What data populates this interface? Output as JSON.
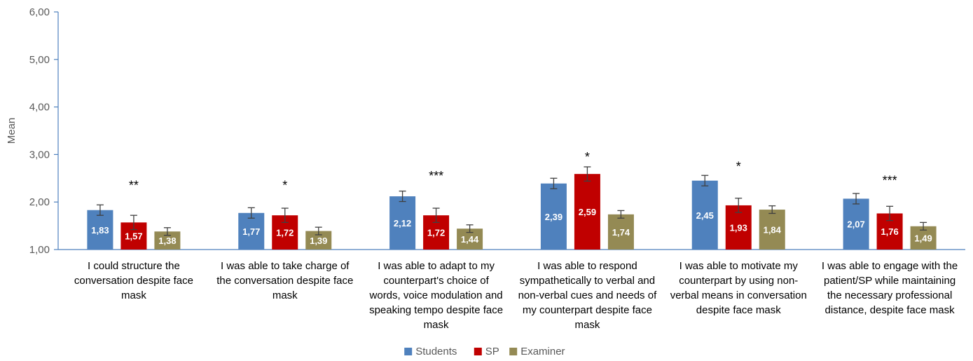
{
  "chart_data": {
    "type": "bar",
    "ylabel": "Mean",
    "ylim": [
      1,
      6
    ],
    "y_ticks": [
      "1,00",
      "2,00",
      "3,00",
      "4,00",
      "5,00",
      "6,00"
    ],
    "legend_position": "bottom",
    "categories": [
      [
        "I could structure the",
        "conversation despite face",
        "mask"
      ],
      [
        "I was able to take charge of",
        "the conversation despite face",
        "mask"
      ],
      [
        "I was able to adapt to my",
        "counterpart's choice of",
        "words, voice modulation and",
        "speaking tempo despite face",
        "mask"
      ],
      [
        "I was able to respond",
        "sympathetically to verbal and",
        "non-verbal cues and needs of",
        "my counterpart despite face",
        "mask"
      ],
      [
        "I was able to motivate my",
        "counterpart by using non-",
        "verbal means in conversation",
        "despite face mask"
      ],
      [
        "I was able to engage with the",
        "patient/SP while maintaining",
        "the necessary professional",
        "distance, despite face mask"
      ]
    ],
    "series": [
      {
        "name": "Students",
        "color": "#4F81BD",
        "values": [
          1.83,
          1.77,
          2.12,
          2.39,
          2.45,
          2.07
        ],
        "labels": [
          "1,83",
          "1,77",
          "2,12",
          "2,39",
          "2,45",
          "2,07"
        ],
        "errors": [
          0.11,
          0.11,
          0.11,
          0.11,
          0.11,
          0.11
        ]
      },
      {
        "name": "SP",
        "color": "#C00000",
        "values": [
          1.57,
          1.72,
          1.72,
          2.59,
          1.93,
          1.76
        ],
        "labels": [
          "1,57",
          "1,72",
          "1,72",
          "2,59",
          "1,93",
          "1,76"
        ],
        "errors": [
          0.15,
          0.15,
          0.15,
          0.15,
          0.15,
          0.15
        ]
      },
      {
        "name": "Examiner",
        "color": "#948A54",
        "values": [
          1.38,
          1.39,
          1.44,
          1.74,
          1.84,
          1.49
        ],
        "labels": [
          "1,38",
          "1,39",
          "1,44",
          "1,74",
          "1,84",
          "1,49"
        ],
        "errors": [
          0.08,
          0.08,
          0.08,
          0.08,
          0.08,
          0.08
        ]
      }
    ],
    "significance": [
      "**",
      "*",
      "***",
      "*",
      "*",
      "***"
    ],
    "significance_y": [
      2.35,
      2.35,
      2.55,
      2.95,
      2.75,
      2.45
    ]
  }
}
